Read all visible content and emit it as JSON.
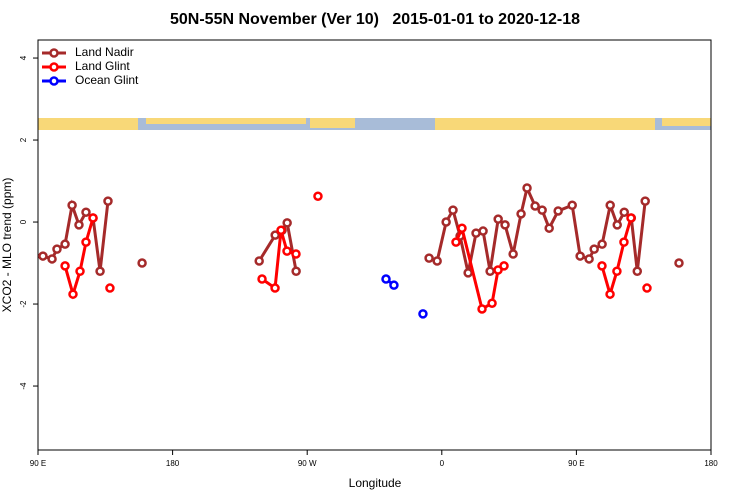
{
  "chart_data": {
    "type": "line",
    "title": "50N-55N November (Ver 10)   2015-01-01 to 2020-12-18",
    "xlabel": "Longitude",
    "ylabel": "XCO2 - MLO trend (ppm)",
    "xlim": [
      90,
      540
    ],
    "ylim": [
      -5.56,
      4.44
    ],
    "xticks": [
      {
        "value": 90,
        "label": "90 E"
      },
      180,
      {
        "value": 270,
        "label": "90 W"
      },
      {
        "value": 360,
        "label": "0"
      },
      {
        "value": 450,
        "label": "90 E"
      },
      {
        "value": 540,
        "label": "180"
      }
    ],
    "yticks": [
      -4,
      -2,
      0,
      2,
      4
    ],
    "legend": "top-left",
    "series": [
      {
        "name": "Land Nadir",
        "color": "#a52a2a",
        "x": [
          93.3,
          99.4,
          102.7,
          108.1,
          112.8,
          117.4,
          122.1,
          126.8,
          131.5,
          136.8,
          null,
          159.6,
          null,
          237.9,
          248.6,
          253.2,
          256.6,
          262.6,
          null,
          351.5,
          356.9,
          362.9,
          367.5,
          372.2,
          377.6,
          382.9,
          387.6,
          392.3,
          397.7,
          402.3,
          407.7,
          413,
          417,
          422.4,
          427.1,
          431.8,
          437.8,
          447.2,
          452.5,
          458.5,
          461.9,
          467.2,
          472.6,
          477.3,
          482,
          486.7,
          490.7,
          496,
          null,
          518.6
        ],
        "values": [
          -0.83,
          -0.9,
          -0.66,
          -0.54,
          0.41,
          -0.07,
          0.24,
          0.1,
          -1.2,
          0.51,
          null,
          -1.0,
          null,
          -0.95,
          -0.32,
          -0.2,
          -0.02,
          -1.2,
          null,
          -0.88,
          -0.95,
          0,
          0.29,
          -0.34,
          -1.24,
          -0.27,
          -0.22,
          -1.2,
          0.07,
          -0.07,
          -0.78,
          0.2,
          0.83,
          0.39,
          0.29,
          -0.15,
          0.27,
          0.41,
          -0.83,
          -0.9,
          -0.66,
          -0.54,
          0.41,
          -0.07,
          0.24,
          0.1,
          -1.2,
          0.51,
          null,
          -1.0
        ]
      },
      {
        "name": "Land Glint",
        "color": "#ff0000",
        "x": [
          108.1,
          113.4,
          118.1,
          122.1,
          126.8,
          null,
          138.1,
          null,
          239.8,
          248.5,
          252.5,
          256.5,
          262.5,
          null,
          277.2,
          null,
          369.5,
          373.5,
          386.9,
          393.6,
          397.6,
          401.6,
          null,
          467.1,
          472.5,
          477.1,
          481.8,
          486.5,
          null,
          497.2
        ],
        "values": [
          -1.07,
          -1.76,
          -1.2,
          -0.49,
          0.1,
          null,
          -1.61,
          null,
          -1.39,
          -1.61,
          -0.2,
          -0.71,
          -0.78,
          null,
          0.63,
          null,
          -0.49,
          -0.15,
          -2.12,
          -1.98,
          -1.17,
          -1.07,
          null,
          -1.07,
          -1.76,
          -1.2,
          -0.49,
          0.1,
          null,
          -1.61
        ]
      },
      {
        "name": "Ocean Glint",
        "color": "#0000ff",
        "x": [
          322.7,
          328,
          null,
          347.4
        ],
        "values": [
          -1.39,
          -1.54,
          null,
          -2.24
        ]
      }
    ]
  }
}
